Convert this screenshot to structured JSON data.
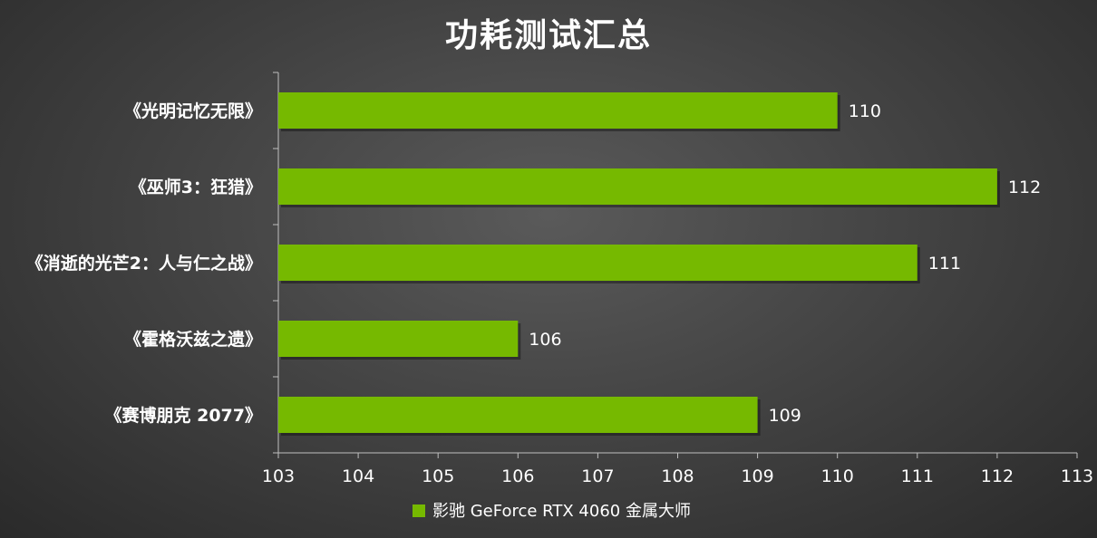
{
  "chart_data": {
    "type": "bar",
    "orientation": "horizontal",
    "title": "功耗测试汇总",
    "categories": [
      "《光明记忆无限》",
      "《巫师3：狂猎》",
      "《消逝的光芒2：人与仁之战》",
      "《霍格沃兹之遗》",
      "《赛博朋克 2077》"
    ],
    "series": [
      {
        "name": "影驰 GeForce RTX 4060 金属大师",
        "values": [
          110,
          112,
          111,
          106,
          109
        ],
        "color": "#76b900"
      }
    ],
    "xlim": [
      103,
      113
    ],
    "xticks": [
      103,
      104,
      105,
      106,
      107,
      108,
      109,
      110,
      111,
      112,
      113
    ],
    "grid": false,
    "legend": "bottom",
    "data_labels": true
  }
}
